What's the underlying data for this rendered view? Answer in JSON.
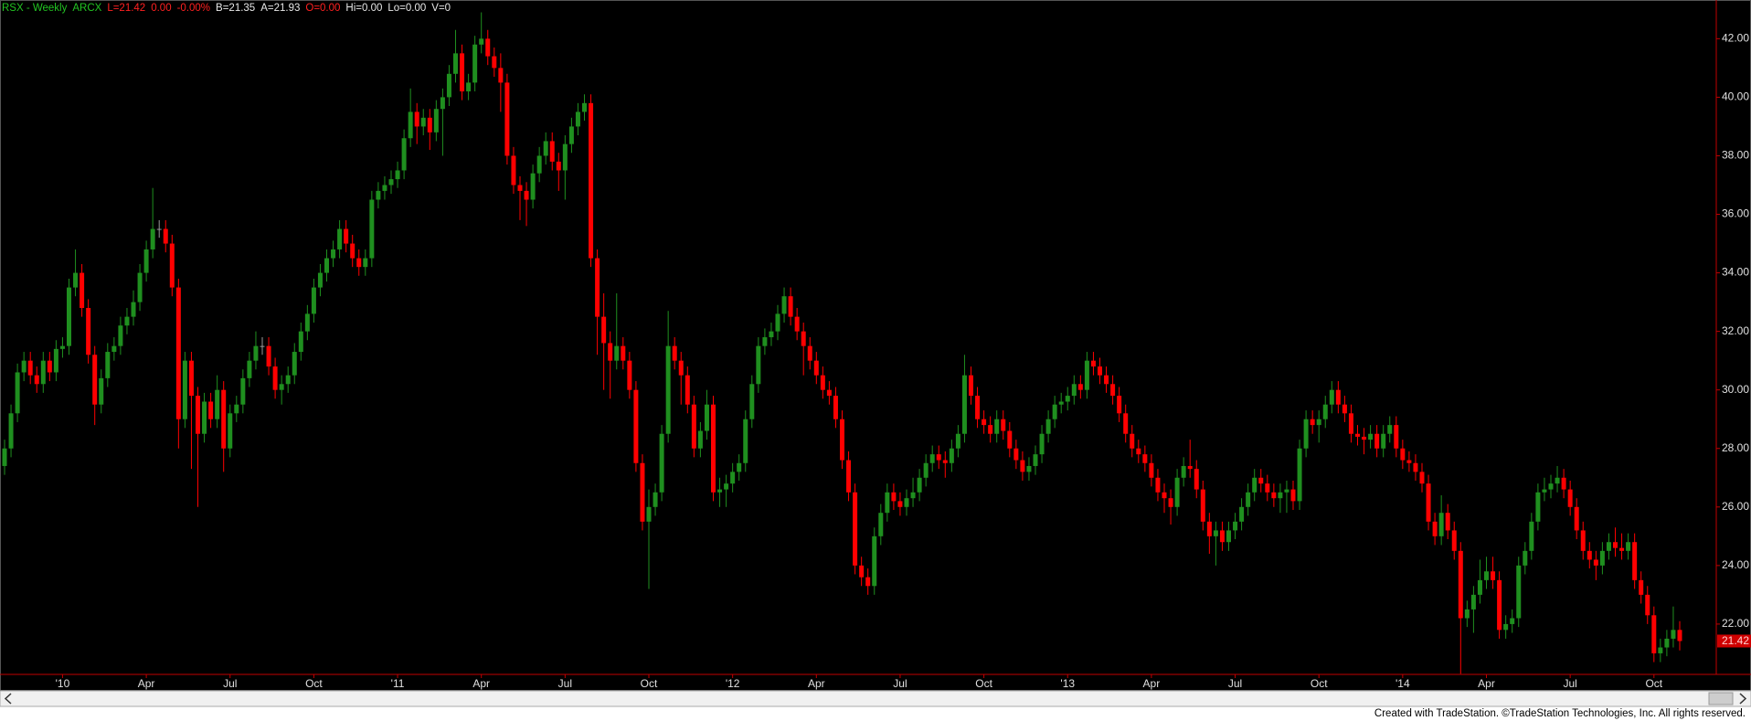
{
  "chart_data": {
    "type": "candlestick",
    "header": [
      {
        "text": "RSX - Weekly",
        "color": "#22c322"
      },
      {
        "text": "ARCX",
        "color": "#22c322"
      },
      {
        "text": "L=21.42",
        "color": "#ff2020"
      },
      {
        "text": "0.00",
        "color": "#ff2020"
      },
      {
        "text": "-0.00%",
        "color": "#ff2020"
      },
      {
        "text": "B=21.35",
        "color": "#e8e8e8"
      },
      {
        "text": "A=21.93",
        "color": "#e8e8e8"
      },
      {
        "text": "O=0.00",
        "color": "#ff2020"
      },
      {
        "text": "Hi=0.00",
        "color": "#e8e8e8"
      },
      {
        "text": "Lo=0.00",
        "color": "#e8e8e8"
      },
      {
        "text": "V=0",
        "color": "#e8e8e8"
      }
    ],
    "up_color": "#1f8f1f",
    "down_color": "#ff0000",
    "grid": false,
    "ylim": [
      20.28,
      43.26
    ],
    "yticks": [
      {
        "value": 22,
        "label": "22.00"
      },
      {
        "value": 24,
        "label": "24.00"
      },
      {
        "value": 26,
        "label": "26.00"
      },
      {
        "value": 28,
        "label": "28.00"
      },
      {
        "value": 30,
        "label": "30.00"
      },
      {
        "value": 32,
        "label": "32.00"
      },
      {
        "value": 34,
        "label": "34.00"
      },
      {
        "value": 36,
        "label": "36.00"
      },
      {
        "value": 38,
        "label": "38.00"
      },
      {
        "value": 40,
        "label": "40.00"
      },
      {
        "value": 42,
        "label": "42.00"
      }
    ],
    "categories": [
      null,
      null,
      null,
      null,
      null,
      null,
      null,
      null,
      null,
      "'10",
      null,
      null,
      null,
      null,
      null,
      null,
      null,
      null,
      null,
      null,
      null,
      null,
      "Apr",
      null,
      null,
      null,
      null,
      null,
      null,
      null,
      null,
      null,
      null,
      null,
      null,
      "Jul",
      null,
      null,
      null,
      null,
      null,
      null,
      null,
      null,
      null,
      null,
      null,
      null,
      "Oct",
      null,
      null,
      null,
      null,
      null,
      null,
      null,
      null,
      null,
      null,
      null,
      null,
      "'11",
      null,
      null,
      null,
      null,
      null,
      null,
      null,
      null,
      null,
      null,
      null,
      null,
      "Apr",
      null,
      null,
      null,
      null,
      null,
      null,
      null,
      null,
      null,
      null,
      null,
      null,
      "Jul",
      null,
      null,
      null,
      null,
      null,
      null,
      null,
      null,
      null,
      null,
      null,
      null,
      "Oct",
      null,
      null,
      null,
      null,
      null,
      null,
      null,
      null,
      null,
      null,
      null,
      null,
      "'12",
      null,
      null,
      null,
      null,
      null,
      null,
      null,
      null,
      null,
      null,
      null,
      null,
      "Apr",
      null,
      null,
      null,
      null,
      null,
      null,
      null,
      null,
      null,
      null,
      null,
      null,
      "Jul",
      null,
      null,
      null,
      null,
      null,
      null,
      null,
      null,
      null,
      null,
      null,
      null,
      "Oct",
      null,
      null,
      null,
      null,
      null,
      null,
      null,
      null,
      null,
      null,
      null,
      null,
      "'13",
      null,
      null,
      null,
      null,
      null,
      null,
      null,
      null,
      null,
      null,
      null,
      null,
      "Apr",
      null,
      null,
      null,
      null,
      null,
      null,
      null,
      null,
      null,
      null,
      null,
      null,
      "Jul",
      null,
      null,
      null,
      null,
      null,
      null,
      null,
      null,
      null,
      null,
      null,
      null,
      "Oct",
      null,
      null,
      null,
      null,
      null,
      null,
      null,
      null,
      null,
      null,
      null,
      null,
      "'14",
      null,
      null,
      null,
      null,
      null,
      null,
      null,
      null,
      null,
      null,
      null,
      null,
      "Apr",
      null,
      null,
      null,
      null,
      null,
      null,
      null,
      null,
      null,
      null,
      null,
      null,
      "Jul",
      null,
      null,
      null,
      null,
      null,
      null,
      null,
      null,
      null,
      null,
      null,
      null,
      "Oct",
      null,
      null,
      null,
      null
    ],
    "open": [
      27.4,
      28.0,
      29.2,
      30.6,
      31.0,
      30.5,
      30.2,
      31.0,
      30.6,
      31.4,
      31.5,
      33.5,
      34.0,
      32.8,
      31.2,
      29.5,
      30.4,
      31.3,
      31.5,
      32.2,
      32.5,
      33.0,
      34.0,
      34.8,
      35.5,
      35.5,
      35.0,
      33.5,
      29.0,
      31.0,
      29.8,
      28.5,
      29.6,
      29.0,
      30.0,
      28.0,
      29.2,
      29.5,
      30.4,
      31.0,
      31.5,
      31.5,
      30.8,
      30.0,
      30.2,
      30.5,
      31.3,
      32.0,
      32.6,
      33.5,
      34.0,
      34.5,
      34.8,
      35.5,
      35.0,
      34.5,
      34.2,
      34.5,
      36.5,
      36.8,
      37.0,
      37.2,
      37.5,
      38.6,
      39.5,
      39.0,
      39.3,
      38.8,
      39.6,
      40.0,
      40.8,
      41.5,
      40.2,
      40.5,
      41.8,
      42.0,
      41.4,
      41.0,
      40.5,
      38.0,
      37.0,
      36.8,
      36.5,
      37.4,
      38.0,
      38.5,
      37.8,
      37.5,
      38.4,
      39.0,
      39.5,
      39.8,
      34.5,
      32.5,
      31.6,
      31.0,
      31.5,
      31.0,
      30.0,
      27.5,
      25.5,
      26.0,
      26.5,
      28.5,
      31.5,
      31.0,
      30.5,
      29.5,
      28.0,
      28.6,
      29.5,
      26.5,
      26.6,
      26.8,
      27.2,
      27.5,
      29.0,
      30.2,
      31.5,
      31.8,
      32.0,
      32.6,
      33.2,
      32.5,
      32.0,
      31.5,
      31.0,
      30.5,
      30.0,
      29.8,
      29.0,
      27.6,
      26.5,
      24.0,
      23.6,
      23.3,
      25.0,
      25.8,
      26.5,
      26.2,
      26.0,
      26.3,
      26.5,
      27.0,
      27.5,
      27.8,
      27.6,
      27.5,
      28.0,
      28.5,
      30.5,
      29.8,
      29.0,
      28.8,
      28.5,
      29.0,
      28.6,
      28.0,
      27.6,
      27.2,
      27.4,
      27.8,
      28.5,
      29.0,
      29.5,
      29.6,
      29.8,
      30.2,
      30.0,
      31.0,
      30.8,
      30.5,
      30.2,
      29.8,
      29.2,
      28.5,
      28.0,
      27.8,
      27.5,
      27.0,
      26.5,
      26.3,
      26.0,
      27.0,
      27.4,
      27.3,
      26.6,
      25.5,
      25.0,
      25.2,
      24.8,
      25.2,
      25.5,
      26.0,
      26.5,
      27.0,
      26.8,
      26.5,
      26.3,
      26.5,
      26.6,
      26.2,
      28.0,
      29.0,
      28.8,
      29.0,
      29.5,
      30.0,
      29.5,
      29.2,
      28.5,
      28.4,
      28.3,
      28.5,
      28.0,
      28.5,
      28.8,
      28.0,
      27.6,
      27.5,
      27.2,
      26.8,
      25.5,
      25.0,
      25.8,
      25.2,
      24.5,
      22.2,
      22.5,
      23.0,
      23.5,
      23.8,
      23.5,
      21.8,
      22.0,
      22.2,
      24.0,
      24.5,
      25.5,
      26.5,
      26.6,
      26.8,
      27.0,
      26.6,
      26.0,
      25.2,
      24.5,
      24.2,
      24.0,
      24.5,
      24.8,
      24.6,
      24.5,
      24.8,
      23.5,
      23.0,
      22.3,
      21.0,
      21.2,
      21.5,
      21.8
    ],
    "high": [
      28.3,
      29.5,
      30.9,
      31.3,
      31.3,
      30.8,
      31.3,
      31.3,
      31.7,
      31.8,
      33.8,
      34.8,
      34.3,
      33.1,
      31.5,
      30.7,
      31.6,
      31.8,
      32.5,
      32.8,
      33.4,
      34.3,
      35.1,
      36.9,
      35.8,
      35.8,
      35.3,
      33.8,
      31.3,
      31.3,
      30.1,
      29.9,
      29.9,
      30.5,
      30.3,
      29.5,
      29.8,
      30.7,
      31.3,
      32.0,
      31.8,
      31.8,
      31.1,
      30.5,
      30.8,
      31.6,
      32.3,
      32.9,
      33.8,
      34.3,
      34.8,
      35.1,
      35.8,
      35.8,
      35.3,
      34.8,
      34.8,
      36.8,
      37.1,
      37.3,
      37.5,
      37.8,
      38.9,
      40.3,
      39.8,
      39.6,
      39.6,
      39.9,
      40.3,
      41.1,
      42.3,
      41.8,
      40.8,
      42.1,
      42.9,
      42.3,
      41.7,
      41.5,
      40.8,
      38.3,
      37.3,
      37.1,
      37.7,
      38.3,
      38.8,
      38.8,
      38.1,
      38.7,
      39.3,
      39.8,
      40.1,
      40.1,
      34.8,
      33.3,
      32.0,
      33.3,
      31.8,
      31.3,
      30.3,
      27.8,
      26.6,
      26.8,
      28.8,
      32.7,
      31.8,
      31.3,
      30.8,
      29.8,
      28.9,
      30.0,
      29.8,
      27.0,
      27.1,
      27.5,
      27.8,
      29.3,
      30.5,
      31.8,
      32.1,
      32.3,
      32.9,
      33.5,
      33.5,
      32.8,
      32.3,
      31.8,
      31.3,
      30.8,
      30.3,
      30.1,
      29.3,
      27.9,
      26.8,
      24.3,
      23.9,
      25.3,
      26.1,
      26.8,
      26.8,
      26.5,
      26.6,
      27.0,
      27.3,
      27.8,
      28.1,
      28.1,
      27.9,
      28.3,
      28.8,
      31.2,
      30.8,
      30.1,
      29.3,
      29.1,
      29.3,
      29.3,
      28.9,
      28.3,
      27.9,
      27.7,
      28.1,
      28.8,
      29.3,
      29.8,
      29.9,
      30.1,
      30.5,
      30.5,
      31.3,
      31.3,
      31.1,
      30.8,
      30.5,
      30.1,
      29.5,
      28.8,
      28.3,
      28.1,
      27.8,
      27.3,
      26.8,
      26.6,
      27.3,
      27.7,
      28.3,
      27.6,
      26.9,
      25.8,
      25.5,
      25.5,
      25.5,
      25.8,
      26.3,
      26.8,
      27.3,
      27.3,
      27.1,
      26.8,
      26.8,
      26.9,
      26.9,
      28.3,
      29.3,
      29.3,
      29.3,
      29.8,
      30.3,
      30.3,
      29.8,
      29.5,
      28.8,
      28.7,
      28.8,
      28.8,
      28.8,
      29.1,
      29.1,
      28.3,
      27.9,
      27.8,
      27.5,
      27.1,
      25.8,
      26.4,
      26.1,
      25.5,
      24.8,
      22.8,
      23.3,
      24.2,
      24.3,
      24.3,
      23.8,
      22.3,
      22.5,
      24.3,
      24.8,
      25.8,
      26.8,
      27.0,
      27.1,
      27.4,
      27.3,
      26.9,
      26.3,
      25.5,
      24.8,
      24.5,
      24.8,
      25.1,
      25.3,
      25.1,
      25.1,
      25.1,
      23.8,
      23.3,
      22.6,
      21.5,
      21.8,
      22.6,
      22.1
    ],
    "low": [
      27.1,
      27.7,
      28.9,
      30.3,
      30.2,
      29.9,
      29.9,
      30.3,
      30.3,
      31.1,
      31.2,
      33.2,
      32.5,
      30.9,
      28.8,
      29.2,
      30.1,
      31.0,
      31.2,
      31.9,
      32.2,
      32.7,
      33.7,
      34.5,
      35.2,
      34.7,
      33.2,
      28.0,
      28.7,
      27.3,
      26.0,
      28.2,
      28.7,
      28.7,
      27.2,
      27.7,
      28.9,
      29.2,
      30.1,
      30.7,
      31.2,
      30.5,
      29.7,
      29.5,
      29.9,
      30.2,
      31.0,
      31.7,
      32.3,
      33.2,
      33.7,
      34.2,
      34.5,
      34.7,
      34.2,
      33.9,
      33.9,
      34.2,
      36.2,
      36.5,
      36.7,
      36.9,
      37.2,
      38.3,
      38.4,
      38.7,
      38.2,
      38.5,
      38.0,
      39.7,
      40.5,
      39.9,
      39.9,
      40.2,
      41.5,
      41.1,
      40.7,
      39.5,
      37.7,
      36.7,
      35.8,
      35.6,
      36.2,
      37.1,
      37.7,
      37.5,
      36.8,
      36.5,
      38.1,
      38.7,
      39.2,
      34.2,
      31.2,
      30.0,
      29.7,
      30.7,
      30.7,
      29.7,
      27.2,
      25.2,
      23.2,
      25.7,
      26.2,
      28.2,
      30.7,
      29.5,
      29.2,
      27.7,
      27.7,
      28.3,
      26.2,
      26.0,
      26.0,
      26.5,
      26.9,
      27.2,
      28.7,
      29.9,
      31.2,
      31.5,
      31.7,
      32.3,
      32.2,
      31.7,
      30.5,
      30.7,
      30.2,
      29.7,
      29.5,
      28.7,
      27.3,
      26.2,
      23.7,
      23.3,
      23.0,
      23.0,
      24.7,
      25.5,
      25.9,
      25.7,
      25.7,
      26.0,
      26.2,
      26.7,
      27.2,
      27.3,
      27.0,
      27.2,
      27.7,
      28.2,
      29.5,
      28.7,
      28.5,
      28.2,
      28.2,
      28.3,
      27.7,
      27.3,
      26.9,
      26.9,
      27.1,
      27.5,
      28.2,
      28.7,
      29.2,
      29.3,
      29.5,
      29.7,
      29.7,
      30.5,
      30.2,
      29.9,
      29.5,
      28.9,
      28.2,
      27.7,
      27.5,
      27.2,
      26.7,
      26.2,
      25.8,
      25.4,
      25.7,
      26.7,
      27.0,
      26.3,
      25.2,
      24.4,
      24.0,
      24.5,
      24.5,
      24.9,
      25.2,
      25.7,
      26.2,
      26.5,
      26.2,
      26.0,
      25.8,
      25.8,
      25.9,
      25.9,
      27.7,
      28.5,
      28.2,
      28.7,
      29.2,
      29.2,
      28.9,
      28.2,
      28.1,
      27.8,
      28.0,
      27.7,
      27.7,
      28.2,
      27.7,
      27.3,
      27.2,
      26.9,
      26.5,
      25.2,
      24.7,
      24.7,
      24.9,
      24.2,
      20.3,
      21.9,
      21.7,
      22.7,
      23.2,
      23.2,
      21.5,
      21.5,
      21.7,
      21.9,
      23.7,
      24.2,
      25.2,
      26.2,
      26.3,
      26.5,
      26.3,
      25.7,
      24.9,
      24.2,
      23.9,
      23.5,
      23.7,
      24.2,
      24.3,
      24.2,
      24.2,
      23.2,
      22.7,
      22.0,
      20.7,
      20.7,
      20.9,
      21.2,
      21.1
    ],
    "close": [
      28.0,
      29.2,
      30.6,
      31.0,
      30.5,
      30.2,
      31.0,
      30.6,
      31.4,
      31.5,
      33.5,
      34.0,
      32.8,
      31.2,
      29.5,
      30.4,
      31.3,
      31.5,
      32.2,
      32.5,
      33.0,
      34.0,
      34.8,
      35.5,
      35.5,
      35.0,
      33.5,
      29.0,
      31.0,
      29.8,
      28.5,
      29.6,
      29.0,
      30.0,
      28.0,
      29.2,
      29.5,
      30.4,
      31.0,
      31.5,
      31.5,
      30.8,
      30.0,
      30.2,
      30.5,
      31.3,
      32.0,
      32.6,
      33.5,
      34.0,
      34.5,
      34.8,
      35.5,
      35.0,
      34.5,
      34.2,
      34.5,
      36.5,
      36.8,
      37.0,
      37.2,
      37.5,
      38.6,
      39.5,
      39.0,
      39.3,
      38.8,
      39.6,
      40.0,
      40.8,
      41.5,
      40.2,
      40.5,
      41.8,
      42.0,
      41.4,
      41.0,
      40.5,
      38.0,
      37.0,
      36.8,
      36.5,
      37.4,
      38.0,
      38.5,
      37.8,
      37.5,
      38.4,
      39.0,
      39.5,
      39.8,
      34.5,
      32.5,
      31.6,
      31.0,
      31.5,
      31.0,
      30.0,
      27.5,
      25.5,
      26.0,
      26.5,
      28.5,
      31.5,
      31.0,
      30.5,
      29.5,
      28.0,
      28.6,
      29.5,
      26.5,
      26.6,
      26.8,
      27.2,
      27.5,
      29.0,
      30.2,
      31.5,
      31.8,
      32.0,
      32.6,
      33.2,
      32.5,
      32.0,
      31.5,
      31.0,
      30.5,
      30.0,
      29.8,
      29.0,
      27.6,
      26.5,
      24.0,
      23.6,
      23.3,
      25.0,
      25.8,
      26.5,
      26.2,
      26.0,
      26.3,
      26.5,
      27.0,
      27.5,
      27.8,
      27.6,
      27.5,
      28.0,
      28.5,
      30.5,
      29.8,
      29.0,
      28.8,
      28.5,
      29.0,
      28.6,
      28.0,
      27.6,
      27.2,
      27.4,
      27.8,
      28.5,
      29.0,
      29.5,
      29.6,
      29.8,
      30.2,
      30.0,
      31.0,
      30.8,
      30.5,
      30.2,
      29.8,
      29.2,
      28.5,
      28.0,
      27.8,
      27.5,
      27.0,
      26.5,
      26.3,
      26.0,
      27.0,
      27.4,
      27.3,
      26.6,
      25.5,
      25.0,
      25.2,
      24.8,
      25.2,
      25.5,
      26.0,
      26.5,
      27.0,
      26.8,
      26.5,
      26.3,
      26.5,
      26.6,
      26.2,
      28.0,
      29.0,
      28.8,
      29.0,
      29.5,
      30.0,
      29.5,
      29.2,
      28.5,
      28.4,
      28.3,
      28.5,
      28.0,
      28.5,
      28.8,
      28.0,
      27.6,
      27.5,
      27.2,
      26.8,
      25.5,
      25.0,
      25.8,
      25.2,
      24.5,
      22.2,
      22.5,
      23.0,
      23.5,
      23.8,
      23.5,
      21.8,
      22.0,
      22.2,
      24.0,
      24.5,
      25.5,
      26.5,
      26.6,
      26.8,
      27.0,
      26.6,
      26.0,
      25.2,
      24.5,
      24.2,
      24.0,
      24.5,
      24.8,
      24.6,
      24.5,
      24.8,
      23.5,
      23.0,
      22.3,
      21.0,
      21.2,
      21.5,
      21.8,
      21.42
    ]
  },
  "footer": "Created with TradeStation. ©TradeStation Technologies, Inc. All rights reserved."
}
